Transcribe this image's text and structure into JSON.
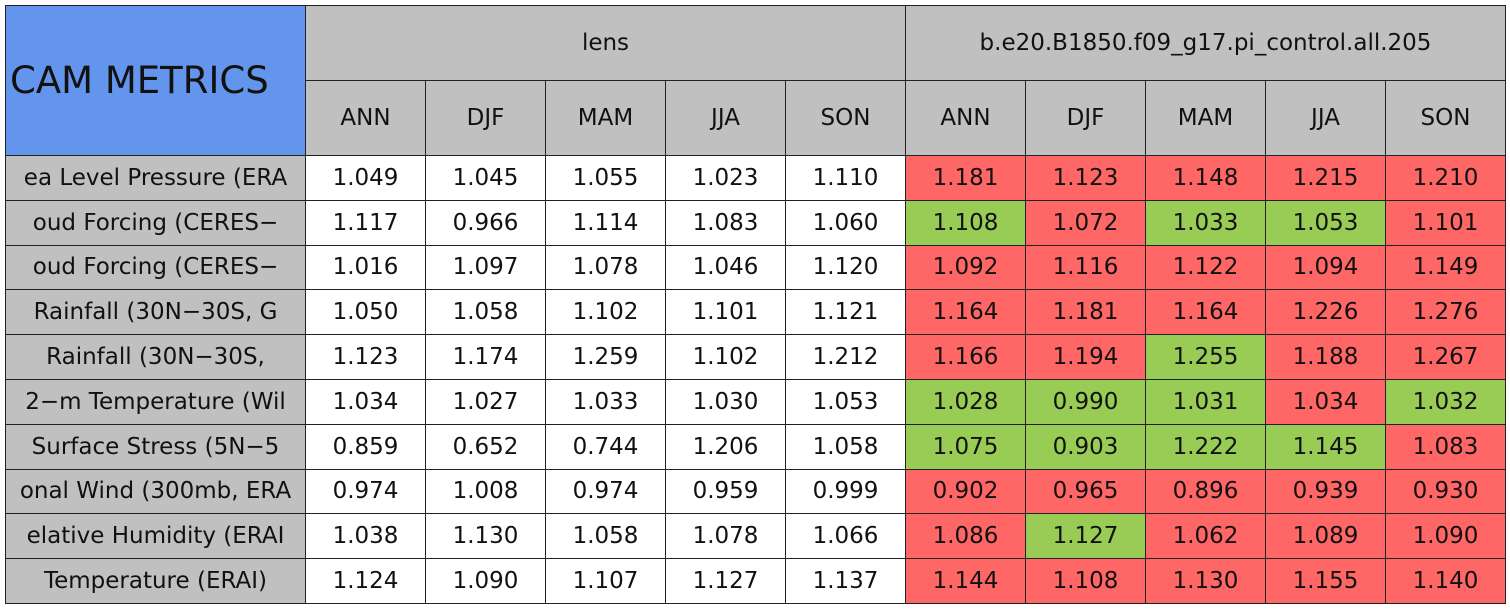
{
  "header": {
    "title": "CAM METRICS",
    "groups": [
      {
        "name": "lens",
        "columns": [
          "ANN",
          "DJF",
          "MAM",
          "JJA",
          "SON"
        ]
      },
      {
        "name": "b.e20.B1850.f09_g17.pi_control.all.205",
        "columns": [
          "ANN",
          "DJF",
          "MAM",
          "JJA",
          "SON"
        ]
      }
    ]
  },
  "table": {
    "rows": [
      {
        "label": "ea Level Pressure (ERA",
        "values": [
          "1.049",
          "1.045",
          "1.055",
          "1.023",
          "1.110",
          "1.181",
          "1.123",
          "1.148",
          "1.215",
          "1.210"
        ],
        "colors": [
          "#ffffff",
          "#ffffff",
          "#ffffff",
          "#ffffff",
          "#ffffff",
          "#ff6666",
          "#ff6666",
          "#ff6666",
          "#ff6666",
          "#ff6666"
        ]
      },
      {
        "label": "oud Forcing (CERES−",
        "values": [
          "1.117",
          "0.966",
          "1.114",
          "1.083",
          "1.060",
          "1.108",
          "1.072",
          "1.033",
          "1.053",
          "1.101"
        ],
        "colors": [
          "#ffffff",
          "#ffffff",
          "#ffffff",
          "#ffffff",
          "#ffffff",
          "#99cc55",
          "#ff6666",
          "#99cc55",
          "#99cc55",
          "#ff6666"
        ]
      },
      {
        "label": "oud Forcing (CERES−",
        "values": [
          "1.016",
          "1.097",
          "1.078",
          "1.046",
          "1.120",
          "1.092",
          "1.116",
          "1.122",
          "1.094",
          "1.149"
        ],
        "colors": [
          "#ffffff",
          "#ffffff",
          "#ffffff",
          "#ffffff",
          "#ffffff",
          "#ff6666",
          "#ff6666",
          "#ff6666",
          "#ff6666",
          "#ff6666"
        ]
      },
      {
        "label": "Rainfall (30N−30S, G",
        "values": [
          "1.050",
          "1.058",
          "1.102",
          "1.101",
          "1.121",
          "1.164",
          "1.181",
          "1.164",
          "1.226",
          "1.276"
        ],
        "colors": [
          "#ffffff",
          "#ffffff",
          "#ffffff",
          "#ffffff",
          "#ffffff",
          "#ff6666",
          "#ff6666",
          "#ff6666",
          "#ff6666",
          "#ff6666"
        ]
      },
      {
        "label": "Rainfall (30N−30S,",
        "values": [
          "1.123",
          "1.174",
          "1.259",
          "1.102",
          "1.212",
          "1.166",
          "1.194",
          "1.255",
          "1.188",
          "1.267"
        ],
        "colors": [
          "#ffffff",
          "#ffffff",
          "#ffffff",
          "#ffffff",
          "#ffffff",
          "#ff6666",
          "#ff6666",
          "#99cc55",
          "#ff6666",
          "#ff6666"
        ]
      },
      {
        "label": "2−m Temperature (Wil",
        "values": [
          "1.034",
          "1.027",
          "1.033",
          "1.030",
          "1.053",
          "1.028",
          "0.990",
          "1.031",
          "1.034",
          "1.032"
        ],
        "colors": [
          "#ffffff",
          "#ffffff",
          "#ffffff",
          "#ffffff",
          "#ffffff",
          "#99cc55",
          "#99cc55",
          "#99cc55",
          "#ff6666",
          "#99cc55"
        ]
      },
      {
        "label": "Surface Stress (5N−5",
        "values": [
          "0.859",
          "0.652",
          "0.744",
          "1.206",
          "1.058",
          "1.075",
          "0.903",
          "1.222",
          "1.145",
          "1.083"
        ],
        "colors": [
          "#ffffff",
          "#ffffff",
          "#ffffff",
          "#ffffff",
          "#ffffff",
          "#99cc55",
          "#99cc55",
          "#99cc55",
          "#99cc55",
          "#ff6666"
        ]
      },
      {
        "label": "onal Wind (300mb, ERA",
        "values": [
          "0.974",
          "1.008",
          "0.974",
          "0.959",
          "0.999",
          "0.902",
          "0.965",
          "0.896",
          "0.939",
          "0.930"
        ],
        "colors": [
          "#ffffff",
          "#ffffff",
          "#ffffff",
          "#ffffff",
          "#ffffff",
          "#ff6666",
          "#ff6666",
          "#ff6666",
          "#ff6666",
          "#ff6666"
        ]
      },
      {
        "label": "elative Humidity (ERAI",
        "values": [
          "1.038",
          "1.130",
          "1.058",
          "1.078",
          "1.066",
          "1.086",
          "1.127",
          "1.062",
          "1.089",
          "1.090"
        ],
        "colors": [
          "#ffffff",
          "#ffffff",
          "#ffffff",
          "#ffffff",
          "#ffffff",
          "#ff6666",
          "#99cc55",
          "#ff6666",
          "#ff6666",
          "#ff6666"
        ]
      },
      {
        "label": "Temperature (ERAI)",
        "values": [
          "1.124",
          "1.090",
          "1.107",
          "1.127",
          "1.137",
          "1.144",
          "1.108",
          "1.130",
          "1.155",
          "1.140"
        ],
        "colors": [
          "#ffffff",
          "#ffffff",
          "#ffffff",
          "#ffffff",
          "#ffffff",
          "#ff6666",
          "#ff6666",
          "#ff6666",
          "#ff6666",
          "#ff6666"
        ]
      }
    ]
  }
}
